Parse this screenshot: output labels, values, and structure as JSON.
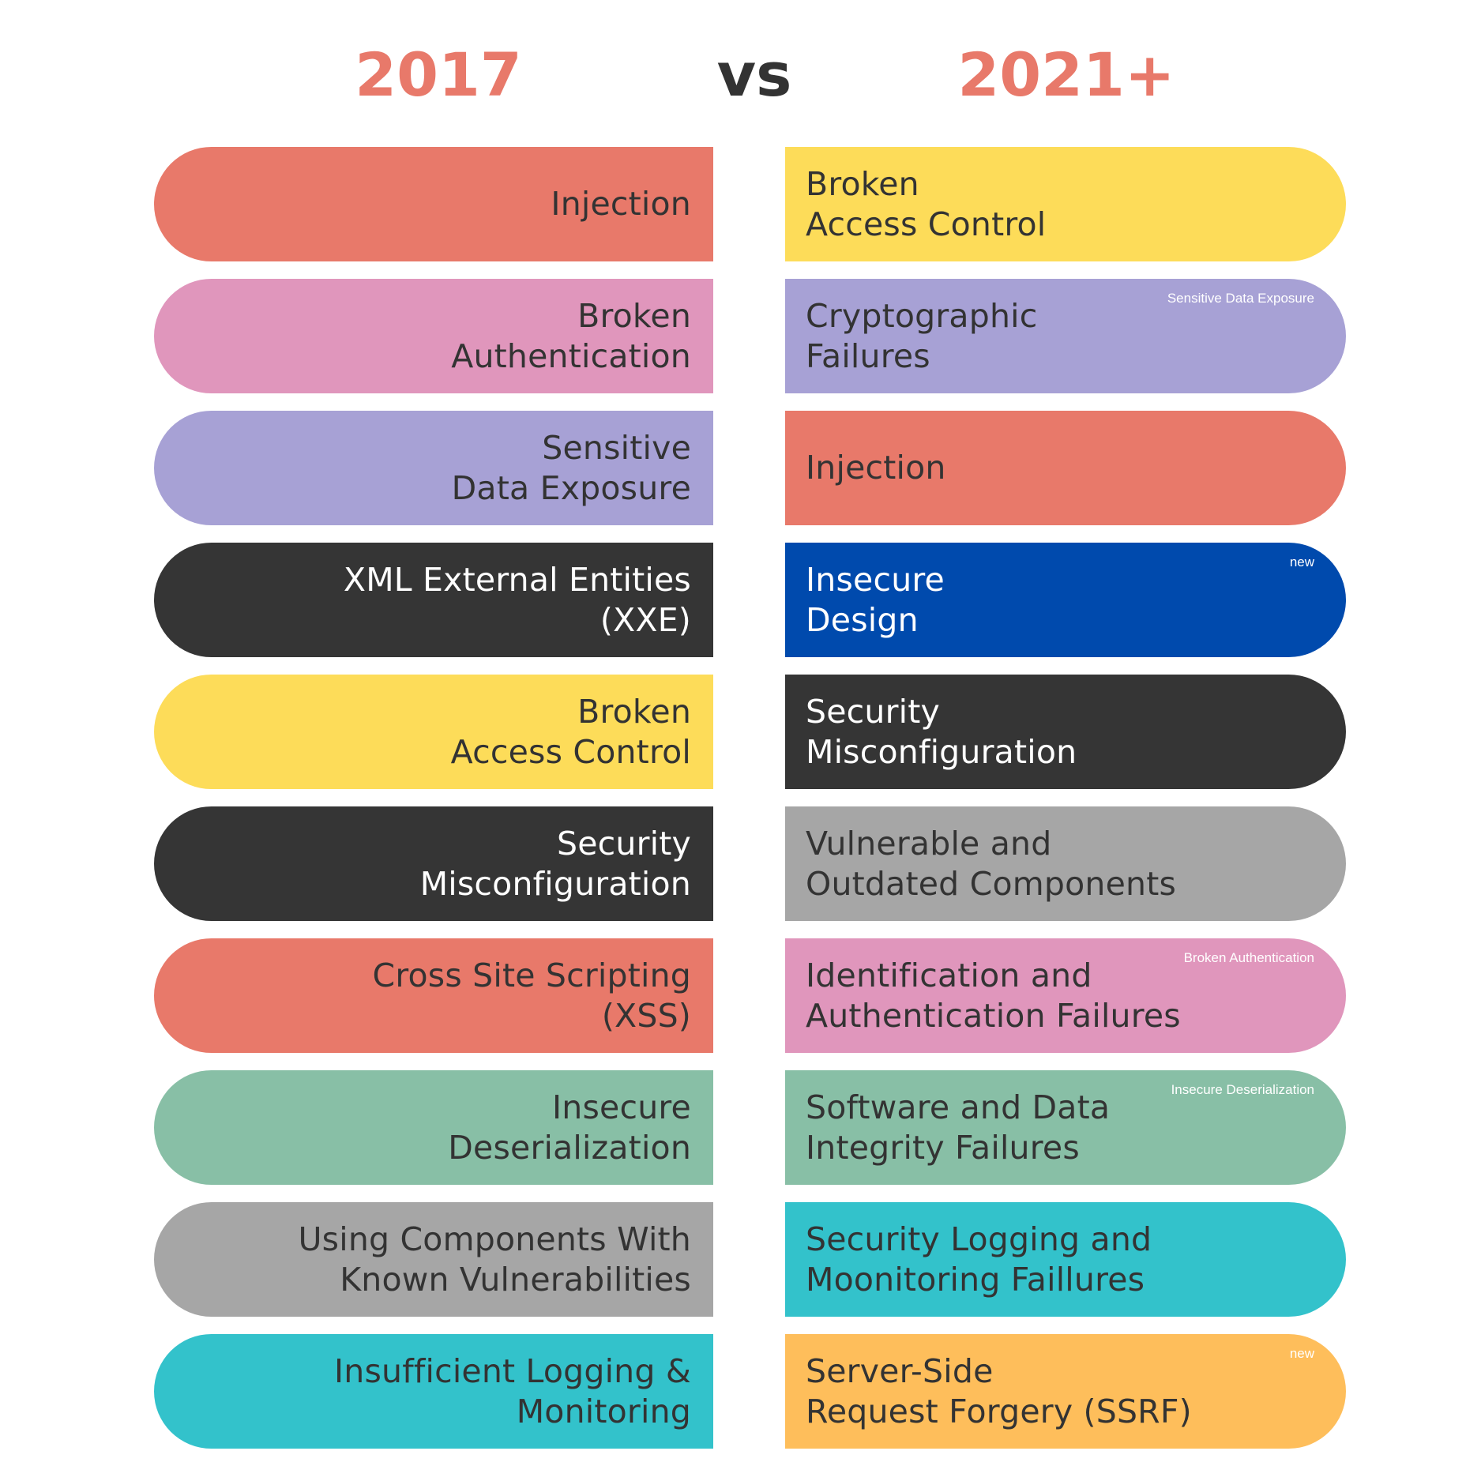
{
  "header": {
    "left_title": "2017",
    "vs": "vs",
    "right_title": "2021+",
    "accent_color": "#E8796A",
    "vs_color": "#333333"
  },
  "left": [
    {
      "label": "Injection",
      "color": "#E8796A",
      "text_color": "#333333"
    },
    {
      "label": "Broken\nAuthentication",
      "color": "#E096BC",
      "text_color": "#333333"
    },
    {
      "label": "Sensitive\nData Exposure",
      "color": "#A7A1D5",
      "text_color": "#333333"
    },
    {
      "label": "XML External Entities\n(XXE)",
      "color": "#353535",
      "text_color": "#FFFFFF"
    },
    {
      "label": "Broken\nAccess Control",
      "color": "#FDDC59",
      "text_color": "#333333"
    },
    {
      "label": "Security\nMisconfiguration",
      "color": "#353535",
      "text_color": "#FFFFFF"
    },
    {
      "label": "Cross Site Scripting\n(XSS)",
      "color": "#E8796A",
      "text_color": "#333333"
    },
    {
      "label": "Insecure\nDeserialization",
      "color": "#88BFA6",
      "text_color": "#333333"
    },
    {
      "label": "Using Components With\nKnown Vulnerabilities",
      "color": "#A6A6A6",
      "text_color": "#333333"
    },
    {
      "label": "Insufficient Logging &\nMonitoring",
      "color": "#33C2CB",
      "text_color": "#333333"
    }
  ],
  "right": [
    {
      "label": "Broken\nAccess Control",
      "note": "",
      "color": "#FDDC59",
      "text_color": "#333333"
    },
    {
      "label": "Cryptographic\nFailures",
      "note": "Sensitive Data Exposure",
      "color": "#A7A1D5",
      "text_color": "#333333"
    },
    {
      "label": "Injection",
      "note": "",
      "color": "#E8796A",
      "text_color": "#333333"
    },
    {
      "label": "Insecure\nDesign",
      "note": "new",
      "color": "#004AAD",
      "text_color": "#FFFFFF"
    },
    {
      "label": "Security\nMisconfiguration",
      "note": "",
      "color": "#353535",
      "text_color": "#FFFFFF"
    },
    {
      "label": "Vulnerable and\nOutdated Components",
      "note": "",
      "color": "#A6A6A6",
      "text_color": "#333333"
    },
    {
      "label": "Identification and\nAuthentication Failures",
      "note": "Broken Authentication",
      "color": "#E096BC",
      "text_color": "#333333"
    },
    {
      "label": "Software and Data\nIntegrity Failures",
      "note": "Insecure Deserialization",
      "color": "#88BFA6",
      "text_color": "#333333"
    },
    {
      "label": "Security Logging and\nMoonitoring Faillures",
      "note": "",
      "color": "#33C2CB",
      "text_color": "#333333"
    },
    {
      "label": "Server-Side\nRequest Forgery (SSRF)",
      "note": "new",
      "color": "#FEBE5B",
      "text_color": "#333333"
    }
  ]
}
